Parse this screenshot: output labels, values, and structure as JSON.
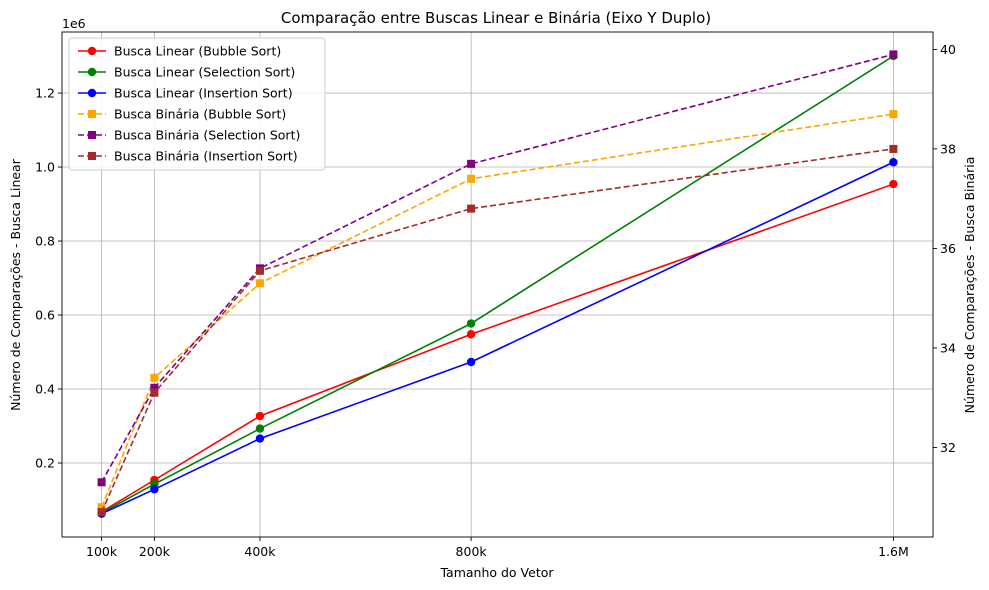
{
  "chart_data": {
    "type": "line",
    "title": "Comparação entre Buscas Linear e Binária (Eixo Y Duplo)",
    "xlabel": "Tamanho do Vetor",
    "ylabel_left": "Número de Comparações - Busca Linear",
    "ylabel_right": "Número de Comparações - Busca Binária",
    "left_offset_text": "1e6",
    "x": [
      100000,
      200000,
      400000,
      800000,
      1600000
    ],
    "x_tick_labels": [
      "100k",
      "200k",
      "400k",
      "800k",
      "1.6M"
    ],
    "xlim": [
      25000,
      1675000
    ],
    "ylim_left": [
      0,
      1.365
    ],
    "left_ticks": [
      0.2,
      0.4,
      0.6,
      0.8,
      1.0,
      1.2
    ],
    "left_tick_labels": [
      "0.2",
      "0.4",
      "0.6",
      "0.8",
      "1.0",
      "1.2"
    ],
    "ylim_right": [
      30.2,
      40.35
    ],
    "right_ticks": [
      32,
      34,
      36,
      38,
      40
    ],
    "right_tick_labels": [
      "32",
      "34",
      "36",
      "38",
      "40"
    ],
    "grid": true,
    "legend_position": "top-left",
    "series": [
      {
        "name": "Busca Linear (Bubble Sort)",
        "axis": "left",
        "color": "#ff0000",
        "linestyle": "solid",
        "marker": "circle",
        "values": [
          0.068,
          0.154,
          0.327,
          0.548,
          0.954
        ]
      },
      {
        "name": "Busca Linear (Selection Sort)",
        "axis": "left",
        "color": "#008000",
        "linestyle": "solid",
        "marker": "circle",
        "values": [
          0.065,
          0.143,
          0.293,
          0.577,
          1.3
        ]
      },
      {
        "name": "Busca Linear (Insertion Sort)",
        "axis": "left",
        "color": "#0000ff",
        "linestyle": "solid",
        "marker": "circle",
        "values": [
          0.063,
          0.129,
          0.266,
          0.473,
          1.013
        ]
      },
      {
        "name": "Busca Binária (Bubble Sort)",
        "axis": "right",
        "color": "#ffa500",
        "linestyle": "dashed",
        "marker": "square",
        "values": [
          30.8,
          33.4,
          35.3,
          37.4,
          38.7
        ]
      },
      {
        "name": "Busca Binária (Selection Sort)",
        "axis": "right",
        "color": "#800080",
        "linestyle": "dashed",
        "marker": "square",
        "values": [
          31.3,
          33.2,
          35.6,
          37.7,
          39.9
        ]
      },
      {
        "name": "Busca Binária (Insertion Sort)",
        "axis": "right",
        "color": "#a52a2a",
        "linestyle": "dashed",
        "marker": "square",
        "values": [
          30.7,
          33.1,
          35.55,
          36.8,
          38.0
        ]
      }
    ]
  }
}
